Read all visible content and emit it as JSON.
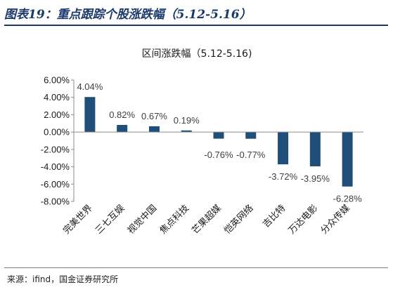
{
  "heading": "图表19：重点跟踪个股涨跌幅（5.12-5.16）",
  "source": "来源：ifind，国金证券研究所",
  "colors": {
    "bar": "#1f4e79",
    "heading": "#1b3a6b"
  },
  "chart_data": {
    "type": "bar",
    "title": "区间涨跌幅（5.12-5.16)",
    "categories": [
      "完美世界",
      "三七互娱",
      "视觉中国",
      "焦点科技",
      "芒果超媒",
      "恺英网络",
      "吉比特",
      "万达电影",
      "分众传媒"
    ],
    "values": [
      4.04,
      0.82,
      0.67,
      0.19,
      -0.76,
      -0.77,
      -3.72,
      -3.95,
      -6.28
    ],
    "data_labels": [
      "4.04%",
      "0.82%",
      "0.67%",
      "0.19%",
      "-0.76%",
      "-0.77%",
      "-3.72%",
      "-3.95%",
      "-6.28%"
    ],
    "yticks": [
      "6.00%",
      "4.00%",
      "2.00%",
      "0.00%",
      "-2.00%",
      "-4.00%",
      "-6.00%",
      "-8.00%"
    ],
    "ytick_values": [
      6,
      4,
      2,
      0,
      -2,
      -4,
      -6,
      -8
    ],
    "ylim": [
      -8,
      6
    ],
    "xlabel": "",
    "ylabel": "",
    "grid": false,
    "legend": "none"
  }
}
